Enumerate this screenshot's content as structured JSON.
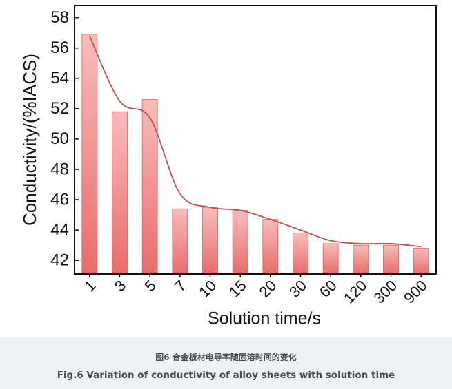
{
  "chart_data": {
    "type": "bar",
    "y_label": "Conductivity/(%IACS)",
    "x_label": "Solution time/s",
    "categories": [
      "1",
      "3",
      "5",
      "7",
      "10",
      "15",
      "20",
      "30",
      "60",
      "120",
      "300",
      "900"
    ],
    "values": [
      56.9,
      51.8,
      52.6,
      45.4,
      45.5,
      45.3,
      44.7,
      43.8,
      43.1,
      43.0,
      43.0,
      42.8
    ],
    "color": "#e96b6b",
    "color_light": "#f8bcbc",
    "edge_color": "#d36464",
    "line_values": [
      56.8,
      52.5,
      51.4,
      46.4,
      45.5,
      45.3,
      44.7,
      44.0,
      43.3,
      43.1,
      43.1,
      42.9
    ],
    "line_color": "#c0504d",
    "ylim": [
      41.1,
      58.8
    ],
    "yticks": [
      42,
      44,
      46,
      48,
      50,
      52,
      54,
      56,
      58
    ]
  },
  "caption": {
    "zh": "图6 合金板材电导率随固溶时间的变化",
    "en": "Fig.6 Variation of conductivity of alloy sheets with solution time"
  }
}
